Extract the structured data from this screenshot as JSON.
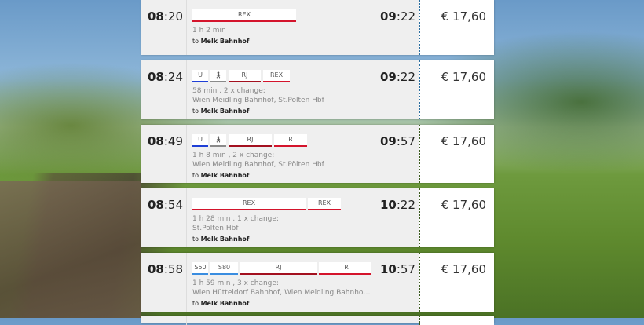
{
  "colors": {
    "U": "#1f3fd6",
    "walk": "#8a8a8a",
    "RJ": "#a3101f",
    "REX": "#d4142c",
    "R": "#d4142c",
    "S": "#3a8de0"
  },
  "connections": [
    {
      "dep_h": "08",
      "dep_m": ":20",
      "arr_h": "09",
      "arr_m": ":22",
      "price": "€ 17,60",
      "duration": "1 h 2 min",
      "via": "",
      "to_prefix": "to",
      "to_station": "Melk Bahnhof",
      "divider_color": "#2a6ea0",
      "segments": [
        {
          "label": "REX",
          "type": "REX"
        }
      ]
    },
    {
      "dep_h": "08",
      "dep_m": ":24",
      "arr_h": "09",
      "arr_m": ":22",
      "price": "€ 17,60",
      "duration": "58 min , 2 x change:",
      "via": "Wien Meidling Bahnhof, St.Pölten Hbf",
      "to_prefix": "to",
      "to_station": "Melk Bahnhof",
      "divider_color": "#2a6ea0",
      "segments": [
        {
          "label": "U",
          "type": "U"
        },
        {
          "label": "walk-icon",
          "type": "walk"
        },
        {
          "label": "RJ",
          "type": "RJ"
        },
        {
          "label": "REX",
          "type": "REX"
        }
      ]
    },
    {
      "dep_h": "08",
      "dep_m": ":49",
      "arr_h": "09",
      "arr_m": ":57",
      "price": "€ 17,60",
      "duration": "1 h 8 min , 2 x change:",
      "via": "Wien Meidling Bahnhof, St.Pölten Hbf",
      "to_prefix": "to",
      "to_station": "Melk Bahnhof",
      "divider_color": "#3a5a1e",
      "segments": [
        {
          "label": "U",
          "type": "U"
        },
        {
          "label": "walk-icon",
          "type": "walk"
        },
        {
          "label": "RJ",
          "type": "RJ"
        },
        {
          "label": "R",
          "type": "R"
        }
      ]
    },
    {
      "dep_h": "08",
      "dep_m": ":54",
      "arr_h": "10",
      "arr_m": ":22",
      "price": "€ 17,60",
      "duration": "1 h 28 min , 1 x change:",
      "via": "St.Pölten Hbf",
      "to_prefix": "to",
      "to_station": "Melk Bahnhof",
      "divider_color": "#3a5a1e",
      "segments": [
        {
          "label": "REX",
          "type": "REX"
        },
        {
          "label": "REX",
          "type": "REX"
        }
      ]
    },
    {
      "dep_h": "08",
      "dep_m": ":58",
      "arr_h": "10",
      "arr_m": ":57",
      "price": "€ 17,60",
      "duration": "1 h 59 min , 3 x change:",
      "via": "Wien Hütteldorf Bahnhof, Wien Meidling Bahnhof, St.Pölten Hbf",
      "to_prefix": "to",
      "to_station": "Melk Bahnhof",
      "divider_color": "#3a5a1e",
      "segments": [
        {
          "label": "S50",
          "type": "S"
        },
        {
          "label": "S80",
          "type": "S"
        },
        {
          "label": "RJ",
          "type": "RJ"
        },
        {
          "label": "R",
          "type": "R"
        }
      ]
    }
  ]
}
